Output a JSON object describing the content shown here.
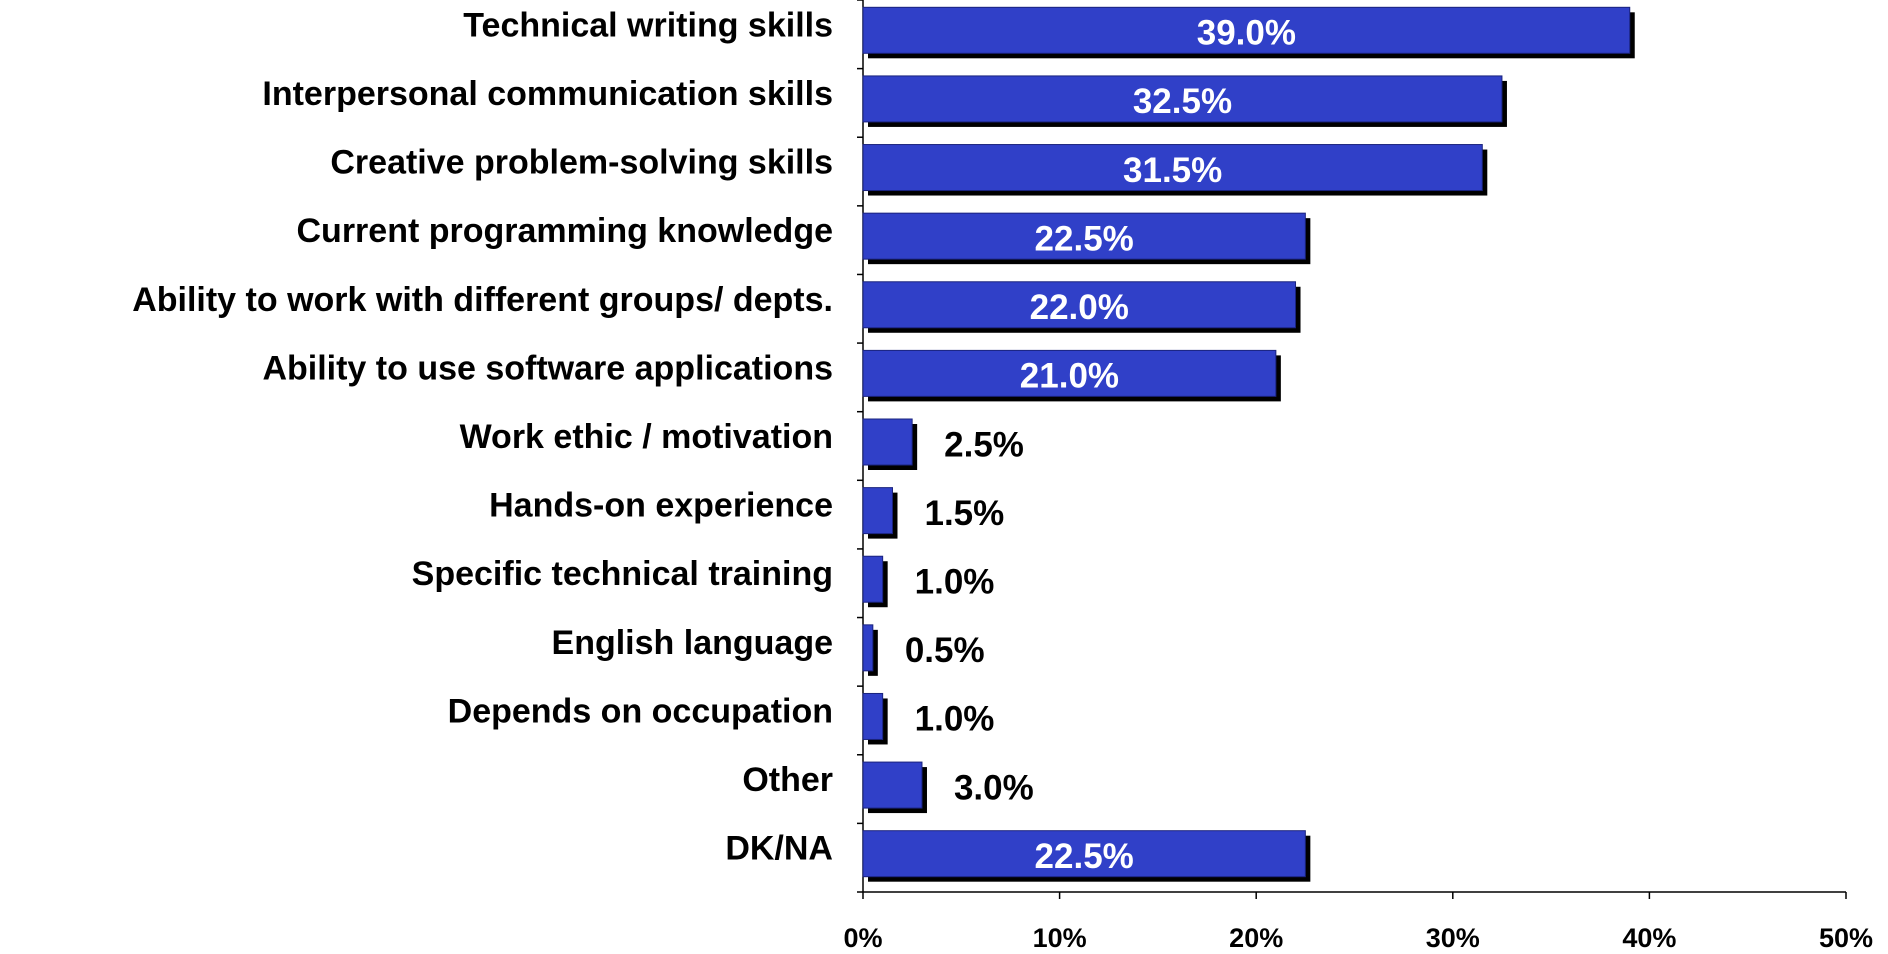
{
  "chart_data": {
    "type": "bar",
    "orientation": "horizontal",
    "categories": [
      "Technical writing skills",
      "Interpersonal communication skills",
      "Creative problem-solving skills",
      "Current programming knowledge",
      "Ability to work with different groups/ depts.",
      "Ability to use software applications",
      "Work ethic / motivation",
      "Hands-on experience",
      "Specific technical training",
      "English language",
      "Depends on occupation",
      "Other",
      "DK/NA"
    ],
    "values": [
      39.0,
      32.5,
      31.5,
      22.5,
      22.0,
      21.0,
      2.5,
      1.5,
      1.0,
      0.5,
      1.0,
      3.0,
      22.5
    ],
    "value_labels": [
      "39.0%",
      "32.5%",
      "31.5%",
      "22.5%",
      "22.0%",
      "21.0%",
      "2.5%",
      "1.5%",
      "1.0%",
      "0.5%",
      "1.0%",
      "3.0%",
      "22.5%"
    ],
    "color": "#3040c8",
    "xlim": [
      0,
      50
    ],
    "xticks": [
      {
        "value": 0,
        "label": "0%"
      },
      {
        "value": 10,
        "label": "10%"
      },
      {
        "value": 20,
        "label": "20%"
      },
      {
        "value": 30,
        "label": "30%"
      },
      {
        "value": 40,
        "label": "40%"
      },
      {
        "value": 50,
        "label": "50%"
      }
    ],
    "grid": false
  }
}
